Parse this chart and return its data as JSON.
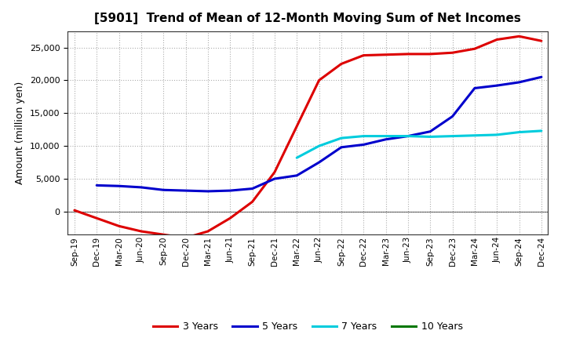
{
  "title": "[5901]  Trend of Mean of 12-Month Moving Sum of Net Incomes",
  "ylabel": "Amount (million yen)",
  "background_color": "#ffffff",
  "plot_bg_color": "#f0f0f0",
  "grid_color": "#999999",
  "x_labels": [
    "Sep-19",
    "Dec-19",
    "Mar-20",
    "Jun-20",
    "Sep-20",
    "Dec-20",
    "Mar-21",
    "Jun-21",
    "Sep-21",
    "Dec-21",
    "Mar-22",
    "Jun-22",
    "Sep-22",
    "Dec-22",
    "Mar-23",
    "Jun-23",
    "Sep-23",
    "Dec-23",
    "Mar-24",
    "Jun-24",
    "Sep-24",
    "Dec-24"
  ],
  "ylim": [
    -3500,
    27500
  ],
  "yticks": [
    0,
    5000,
    10000,
    15000,
    20000,
    25000
  ],
  "series": {
    "3 Years": {
      "color": "#dd0000",
      "data": [
        200,
        -1000,
        -2200,
        -3000,
        -3500,
        -4000,
        -3000,
        -1000,
        1500,
        6000,
        13000,
        20000,
        22500,
        23800,
        23900,
        24000,
        24000,
        24200,
        24800,
        26200,
        26700,
        26000
      ]
    },
    "5 Years": {
      "color": "#0000cc",
      "data": [
        null,
        4000,
        3900,
        3700,
        3300,
        3200,
        3100,
        3200,
        3500,
        5000,
        5500,
        7500,
        9800,
        10200,
        11000,
        11500,
        12200,
        14500,
        18800,
        19200,
        19700,
        20500
      ]
    },
    "7 Years": {
      "color": "#00ccdd",
      "data": [
        null,
        null,
        null,
        null,
        null,
        null,
        null,
        null,
        null,
        null,
        8200,
        10000,
        11200,
        11500,
        11500,
        11500,
        11400,
        11500,
        11600,
        11700,
        12100,
        12300
      ]
    },
    "10 Years": {
      "color": "#007700",
      "data": [
        null,
        null,
        null,
        null,
        null,
        null,
        null,
        null,
        null,
        null,
        null,
        null,
        null,
        null,
        null,
        null,
        null,
        null,
        null,
        null,
        null,
        null
      ]
    }
  },
  "legend_labels": [
    "3 Years",
    "5 Years",
    "7 Years",
    "10 Years"
  ],
  "legend_colors": [
    "#dd0000",
    "#0000cc",
    "#00ccdd",
    "#007700"
  ]
}
